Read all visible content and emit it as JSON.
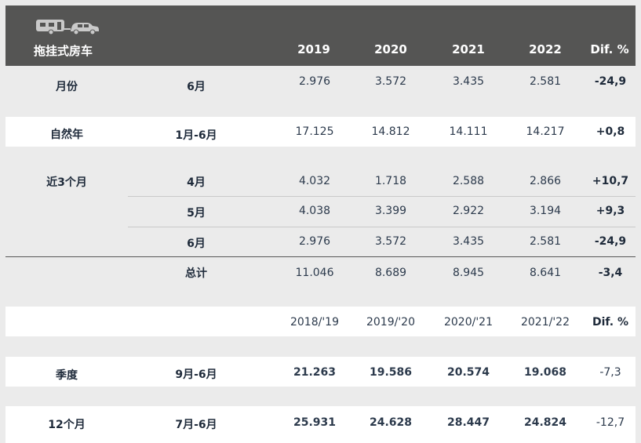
{
  "header": {
    "title": "拖挂式房车",
    "icons": [
      "caravan-icon",
      "car-icon"
    ],
    "columns": [
      "2019",
      "2020",
      "2021",
      "2022",
      "Dif. %"
    ]
  },
  "rows": [
    {
      "label": "月份",
      "month": "6月",
      "values": [
        "2.976",
        "3.572",
        "3.435",
        "2.581"
      ],
      "dif": "-24,9"
    },
    {
      "label": "自然年",
      "month": "1月-6月",
      "values": [
        "17.125",
        "14.812",
        "14.111",
        "14.217"
      ],
      "dif": "+0,8"
    },
    {
      "label": "近3个月",
      "month": "4月",
      "values": [
        "4.032",
        "1.718",
        "2.588",
        "2.866"
      ],
      "dif": "+10,7"
    },
    {
      "label": "",
      "month": "5月",
      "values": [
        "4.038",
        "3.399",
        "2.922",
        "3.194"
      ],
      "dif": "+9,3"
    },
    {
      "label": "",
      "month": "6月",
      "values": [
        "2.976",
        "3.572",
        "3.435",
        "2.581"
      ],
      "dif": "-24,9"
    },
    {
      "label": "",
      "month": "总计",
      "values": [
        "11.046",
        "8.689",
        "8.945",
        "8.641"
      ],
      "dif": "-3,4"
    }
  ],
  "season_header": {
    "columns": [
      "2018/'19",
      "2019/'20",
      "2020/'21",
      "2021/'22",
      "Dif. %"
    ]
  },
  "season_rows": [
    {
      "label": "季度",
      "month": "9月-6月",
      "values": [
        "21.263",
        "19.586",
        "20.574",
        "19.068"
      ],
      "dif": "-7,3"
    },
    {
      "label": "12个月",
      "month": "7月-6月",
      "values": [
        "25.931",
        "24.628",
        "28.447",
        "24.824"
      ],
      "dif": "-12,7"
    }
  ],
  "colors": {
    "header_bg": "#555554",
    "band_bg": "#ffffff",
    "page_bg": "#ebebeb",
    "text": "#1e2a3a"
  }
}
